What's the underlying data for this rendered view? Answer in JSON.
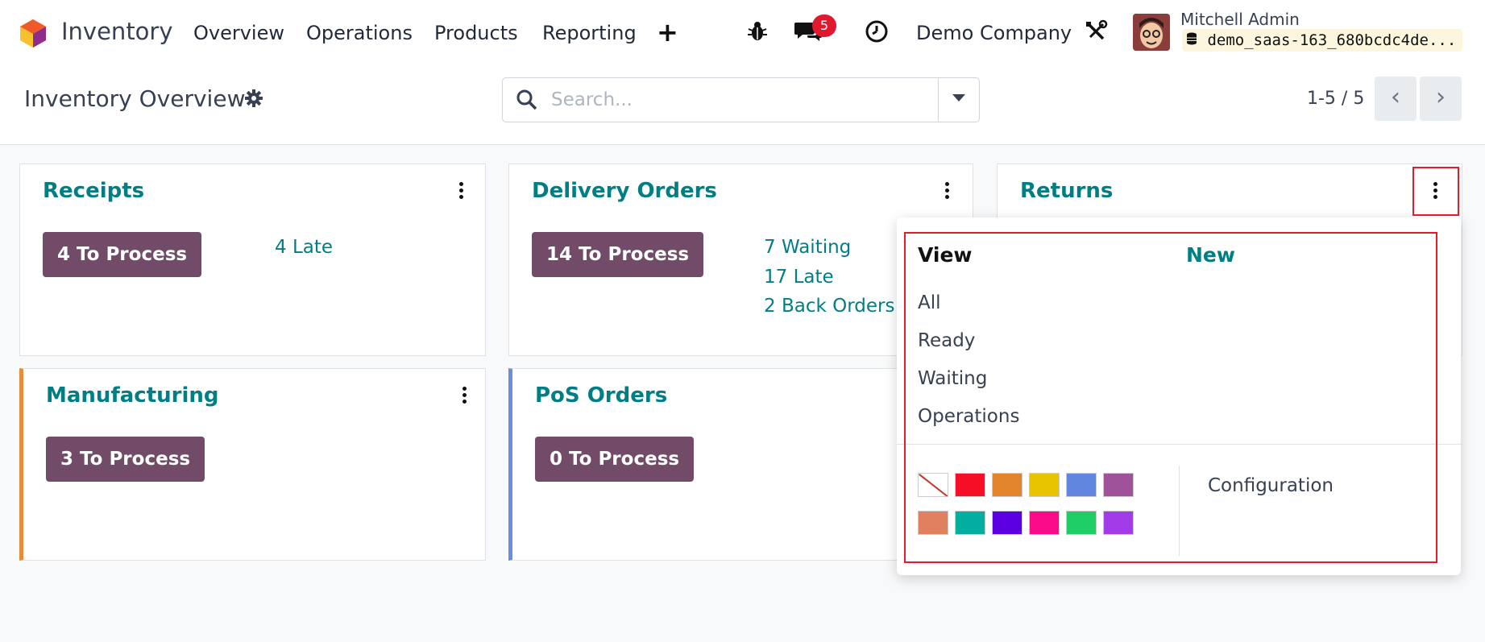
{
  "navbar": {
    "app_name": "Inventory",
    "menu": [
      "Overview",
      "Operations",
      "Products",
      "Reporting"
    ],
    "plus_icon": "+",
    "chat_badge": "5",
    "company": "Demo Company",
    "user_name": "Mitchell Admin",
    "database": "demo_saas-163_680bcdc4de..."
  },
  "control": {
    "title": "Inventory Overview",
    "search_placeholder": "Search...",
    "pager": "1-5 / 5",
    "prev": "‹",
    "next": "›"
  },
  "cards": [
    {
      "title": "Receipts",
      "button": "4 To Process",
      "links": [
        "4 Late"
      ],
      "accent": null
    },
    {
      "title": "Delivery Orders",
      "button": "14 To Process",
      "links": [
        "7 Waiting",
        "17 Late",
        "2 Back Orders"
      ],
      "accent": null
    },
    {
      "title": "Returns",
      "button": "",
      "links": [],
      "accent": null
    },
    {
      "title": "Manufacturing",
      "button": "3 To Process",
      "links": [],
      "accent": "#e68c3a"
    },
    {
      "title": "PoS Orders",
      "button": "0 To Process",
      "links": [],
      "accent": "#6a8edb"
    }
  ],
  "dropdown": {
    "view_label": "View",
    "new_label": "New",
    "items": [
      "All",
      "Ready",
      "Waiting",
      "Operations"
    ],
    "colors": [
      "none",
      "#f50e26",
      "#e2852d",
      "#e8c400",
      "#6186e0",
      "#9f529a",
      "#e1805f",
      "#03ada0",
      "#5b00e2",
      "#fb0a8a",
      "#1ecd63",
      "#a23be8"
    ],
    "configuration": "Configuration"
  },
  "theme": {
    "primary": "#714b67",
    "link": "#017e84",
    "highlight": "#e11d2a"
  }
}
